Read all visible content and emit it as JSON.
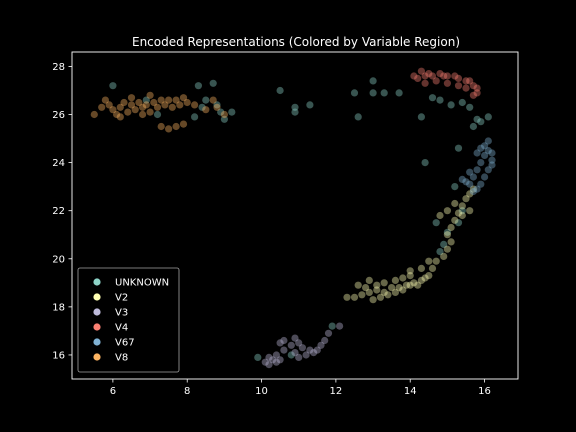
{
  "chart_data": {
    "type": "scatter",
    "title": "Encoded Representations (Colored by Variable Region)",
    "xlabel": "",
    "ylabel": "",
    "xlim": [
      4.9,
      16.9
    ],
    "ylim": [
      15.0,
      28.6
    ],
    "xticks": [
      6,
      8,
      10,
      12,
      14,
      16
    ],
    "yticks": [
      16,
      18,
      20,
      22,
      24,
      26,
      28
    ],
    "grid": false,
    "legend_position": "lower-left",
    "background": "#000000",
    "point_alpha": 0.4,
    "series": [
      {
        "name": "UNKNOWN",
        "color": "#8dd3c7",
        "points": [
          [
            6.0,
            27.2
          ],
          [
            8.3,
            27.2
          ],
          [
            8.7,
            27.3
          ],
          [
            8.5,
            26.6
          ],
          [
            8.8,
            26.4
          ],
          [
            9.0,
            25.8
          ],
          [
            8.4,
            26.3
          ],
          [
            8.9,
            26.1
          ],
          [
            9.2,
            26.1
          ],
          [
            8.2,
            25.9
          ],
          [
            7.2,
            26.0
          ],
          [
            6.9,
            26.6
          ],
          [
            10.5,
            27.0
          ],
          [
            10.9,
            26.3
          ],
          [
            10.9,
            26.1
          ],
          [
            11.3,
            26.4
          ],
          [
            12.5,
            26.9
          ],
          [
            12.6,
            25.9
          ],
          [
            13.0,
            27.4
          ],
          [
            13.3,
            26.9
          ],
          [
            13.0,
            26.9
          ],
          [
            13.7,
            26.9
          ],
          [
            14.3,
            25.9
          ],
          [
            14.6,
            26.7
          ],
          [
            14.8,
            26.6
          ],
          [
            15.1,
            26.4
          ],
          [
            15.4,
            26.5
          ],
          [
            15.6,
            26.3
          ],
          [
            15.8,
            25.8
          ],
          [
            15.9,
            25.7
          ],
          [
            16.1,
            25.9
          ],
          [
            15.7,
            25.5
          ],
          [
            15.3,
            24.6
          ],
          [
            14.4,
            24.0
          ],
          [
            15.2,
            23.0
          ],
          [
            15.4,
            22.0
          ],
          [
            15.3,
            21.5
          ],
          [
            15.0,
            21.1
          ],
          [
            14.9,
            20.6
          ],
          [
            14.8,
            20.3
          ],
          [
            14.7,
            21.5
          ],
          [
            11.9,
            17.2
          ],
          [
            10.8,
            16.0
          ],
          [
            9.9,
            15.9
          ]
        ]
      },
      {
        "name": "V2",
        "color": "#ffffb3",
        "points": [
          [
            12.3,
            18.4
          ],
          [
            12.5,
            18.4
          ],
          [
            12.7,
            18.5
          ],
          [
            12.9,
            18.6
          ],
          [
            13.1,
            18.7
          ],
          [
            13.3,
            18.6
          ],
          [
            13.5,
            18.8
          ],
          [
            13.7,
            18.8
          ],
          [
            13.9,
            18.9
          ],
          [
            14.1,
            19.0
          ],
          [
            14.3,
            19.1
          ],
          [
            14.4,
            19.2
          ],
          [
            13.0,
            18.3
          ],
          [
            13.2,
            18.4
          ],
          [
            13.4,
            18.5
          ],
          [
            13.6,
            18.6
          ],
          [
            13.8,
            18.7
          ],
          [
            14.0,
            18.9
          ],
          [
            14.2,
            18.9
          ],
          [
            13.1,
            18.9
          ],
          [
            13.3,
            19.0
          ],
          [
            13.6,
            19.1
          ],
          [
            13.8,
            19.2
          ],
          [
            14.0,
            19.3
          ],
          [
            12.8,
            18.8
          ],
          [
            14.5,
            19.3
          ],
          [
            14.6,
            19.6
          ],
          [
            14.7,
            19.9
          ],
          [
            14.9,
            20.1
          ],
          [
            15.0,
            20.4
          ],
          [
            15.1,
            20.7
          ],
          [
            15.0,
            21.0
          ],
          [
            15.1,
            21.3
          ],
          [
            15.2,
            21.6
          ],
          [
            15.3,
            21.9
          ],
          [
            15.4,
            22.2
          ],
          [
            15.5,
            22.5
          ],
          [
            15.6,
            22.7
          ],
          [
            15.7,
            22.9
          ],
          [
            15.2,
            22.3
          ],
          [
            15.0,
            22.0
          ],
          [
            14.8,
            21.8
          ],
          [
            15.4,
            21.8
          ],
          [
            15.6,
            22.0
          ],
          [
            14.5,
            19.9
          ],
          [
            14.3,
            19.6
          ],
          [
            14.0,
            19.5
          ],
          [
            12.9,
            19.1
          ],
          [
            12.6,
            18.9
          ]
        ]
      },
      {
        "name": "V3",
        "color": "#bebada",
        "points": [
          [
            10.1,
            15.7
          ],
          [
            10.2,
            15.9
          ],
          [
            10.3,
            15.8
          ],
          [
            10.4,
            16.0
          ],
          [
            10.5,
            15.8
          ],
          [
            10.6,
            16.2
          ],
          [
            10.8,
            16.4
          ],
          [
            10.6,
            16.6
          ],
          [
            10.5,
            16.5
          ],
          [
            10.9,
            16.7
          ],
          [
            11.0,
            16.5
          ],
          [
            10.9,
            16.1
          ],
          [
            11.1,
            16.3
          ],
          [
            11.2,
            16.0
          ],
          [
            11.3,
            16.2
          ],
          [
            11.4,
            16.1
          ],
          [
            11.5,
            16.2
          ],
          [
            11.6,
            16.4
          ],
          [
            10.2,
            15.6
          ],
          [
            10.4,
            15.7
          ],
          [
            11.0,
            15.9
          ],
          [
            11.7,
            16.6
          ],
          [
            11.8,
            16.9
          ],
          [
            12.1,
            17.2
          ]
        ]
      },
      {
        "name": "V4",
        "color": "#fb8072",
        "points": [
          [
            14.1,
            27.6
          ],
          [
            14.2,
            27.5
          ],
          [
            14.4,
            27.6
          ],
          [
            14.5,
            27.7
          ],
          [
            14.6,
            27.6
          ],
          [
            14.8,
            27.7
          ],
          [
            14.9,
            27.6
          ],
          [
            15.0,
            27.6
          ],
          [
            15.2,
            27.6
          ],
          [
            15.3,
            27.5
          ],
          [
            15.5,
            27.4
          ],
          [
            15.6,
            27.4
          ],
          [
            15.7,
            27.2
          ],
          [
            15.8,
            27.1
          ],
          [
            15.8,
            26.9
          ],
          [
            15.7,
            26.8
          ],
          [
            15.0,
            27.3
          ],
          [
            15.3,
            27.2
          ],
          [
            14.7,
            27.4
          ],
          [
            14.4,
            27.3
          ],
          [
            15.5,
            27.1
          ],
          [
            14.3,
            27.8
          ]
        ]
      },
      {
        "name": "V67",
        "color": "#80b1d3",
        "points": [
          [
            15.6,
            23.1
          ],
          [
            15.7,
            23.4
          ],
          [
            15.8,
            23.7
          ],
          [
            15.9,
            24.0
          ],
          [
            16.0,
            24.3
          ],
          [
            16.1,
            24.5
          ],
          [
            16.2,
            24.4
          ],
          [
            16.2,
            24.1
          ],
          [
            16.1,
            23.7
          ],
          [
            16.0,
            23.4
          ],
          [
            15.9,
            23.1
          ],
          [
            15.8,
            22.9
          ],
          [
            15.7,
            22.8
          ],
          [
            15.5,
            23.2
          ],
          [
            16.0,
            24.7
          ],
          [
            15.8,
            24.4
          ],
          [
            15.6,
            23.6
          ],
          [
            16.2,
            23.9
          ],
          [
            15.4,
            23.3
          ],
          [
            16.1,
            24.9
          ],
          [
            15.9,
            24.6
          ]
        ]
      },
      {
        "name": "V8",
        "color": "#fdb462",
        "points": [
          [
            5.5,
            26.0
          ],
          [
            5.7,
            26.3
          ],
          [
            5.9,
            26.4
          ],
          [
            6.0,
            26.2
          ],
          [
            6.1,
            26.0
          ],
          [
            6.2,
            26.3
          ],
          [
            6.3,
            26.5
          ],
          [
            6.4,
            26.1
          ],
          [
            6.5,
            26.4
          ],
          [
            6.6,
            26.2
          ],
          [
            6.7,
            26.5
          ],
          [
            6.8,
            26.3
          ],
          [
            6.9,
            26.4
          ],
          [
            7.0,
            26.1
          ],
          [
            7.1,
            26.5
          ],
          [
            7.2,
            26.3
          ],
          [
            7.3,
            26.6
          ],
          [
            7.4,
            26.4
          ],
          [
            7.5,
            26.6
          ],
          [
            7.6,
            26.3
          ],
          [
            7.7,
            26.6
          ],
          [
            7.8,
            26.4
          ],
          [
            7.9,
            26.7
          ],
          [
            8.0,
            26.5
          ],
          [
            8.2,
            26.4
          ],
          [
            8.5,
            26.2
          ],
          [
            8.8,
            26.3
          ],
          [
            9.0,
            26.0
          ],
          [
            6.2,
            25.9
          ],
          [
            7.0,
            26.8
          ],
          [
            7.3,
            25.5
          ],
          [
            7.5,
            25.4
          ],
          [
            7.7,
            25.5
          ],
          [
            7.9,
            25.6
          ],
          [
            5.8,
            26.6
          ],
          [
            6.8,
            26.0
          ],
          [
            8.7,
            26.6
          ],
          [
            6.5,
            26.7
          ]
        ]
      }
    ]
  }
}
